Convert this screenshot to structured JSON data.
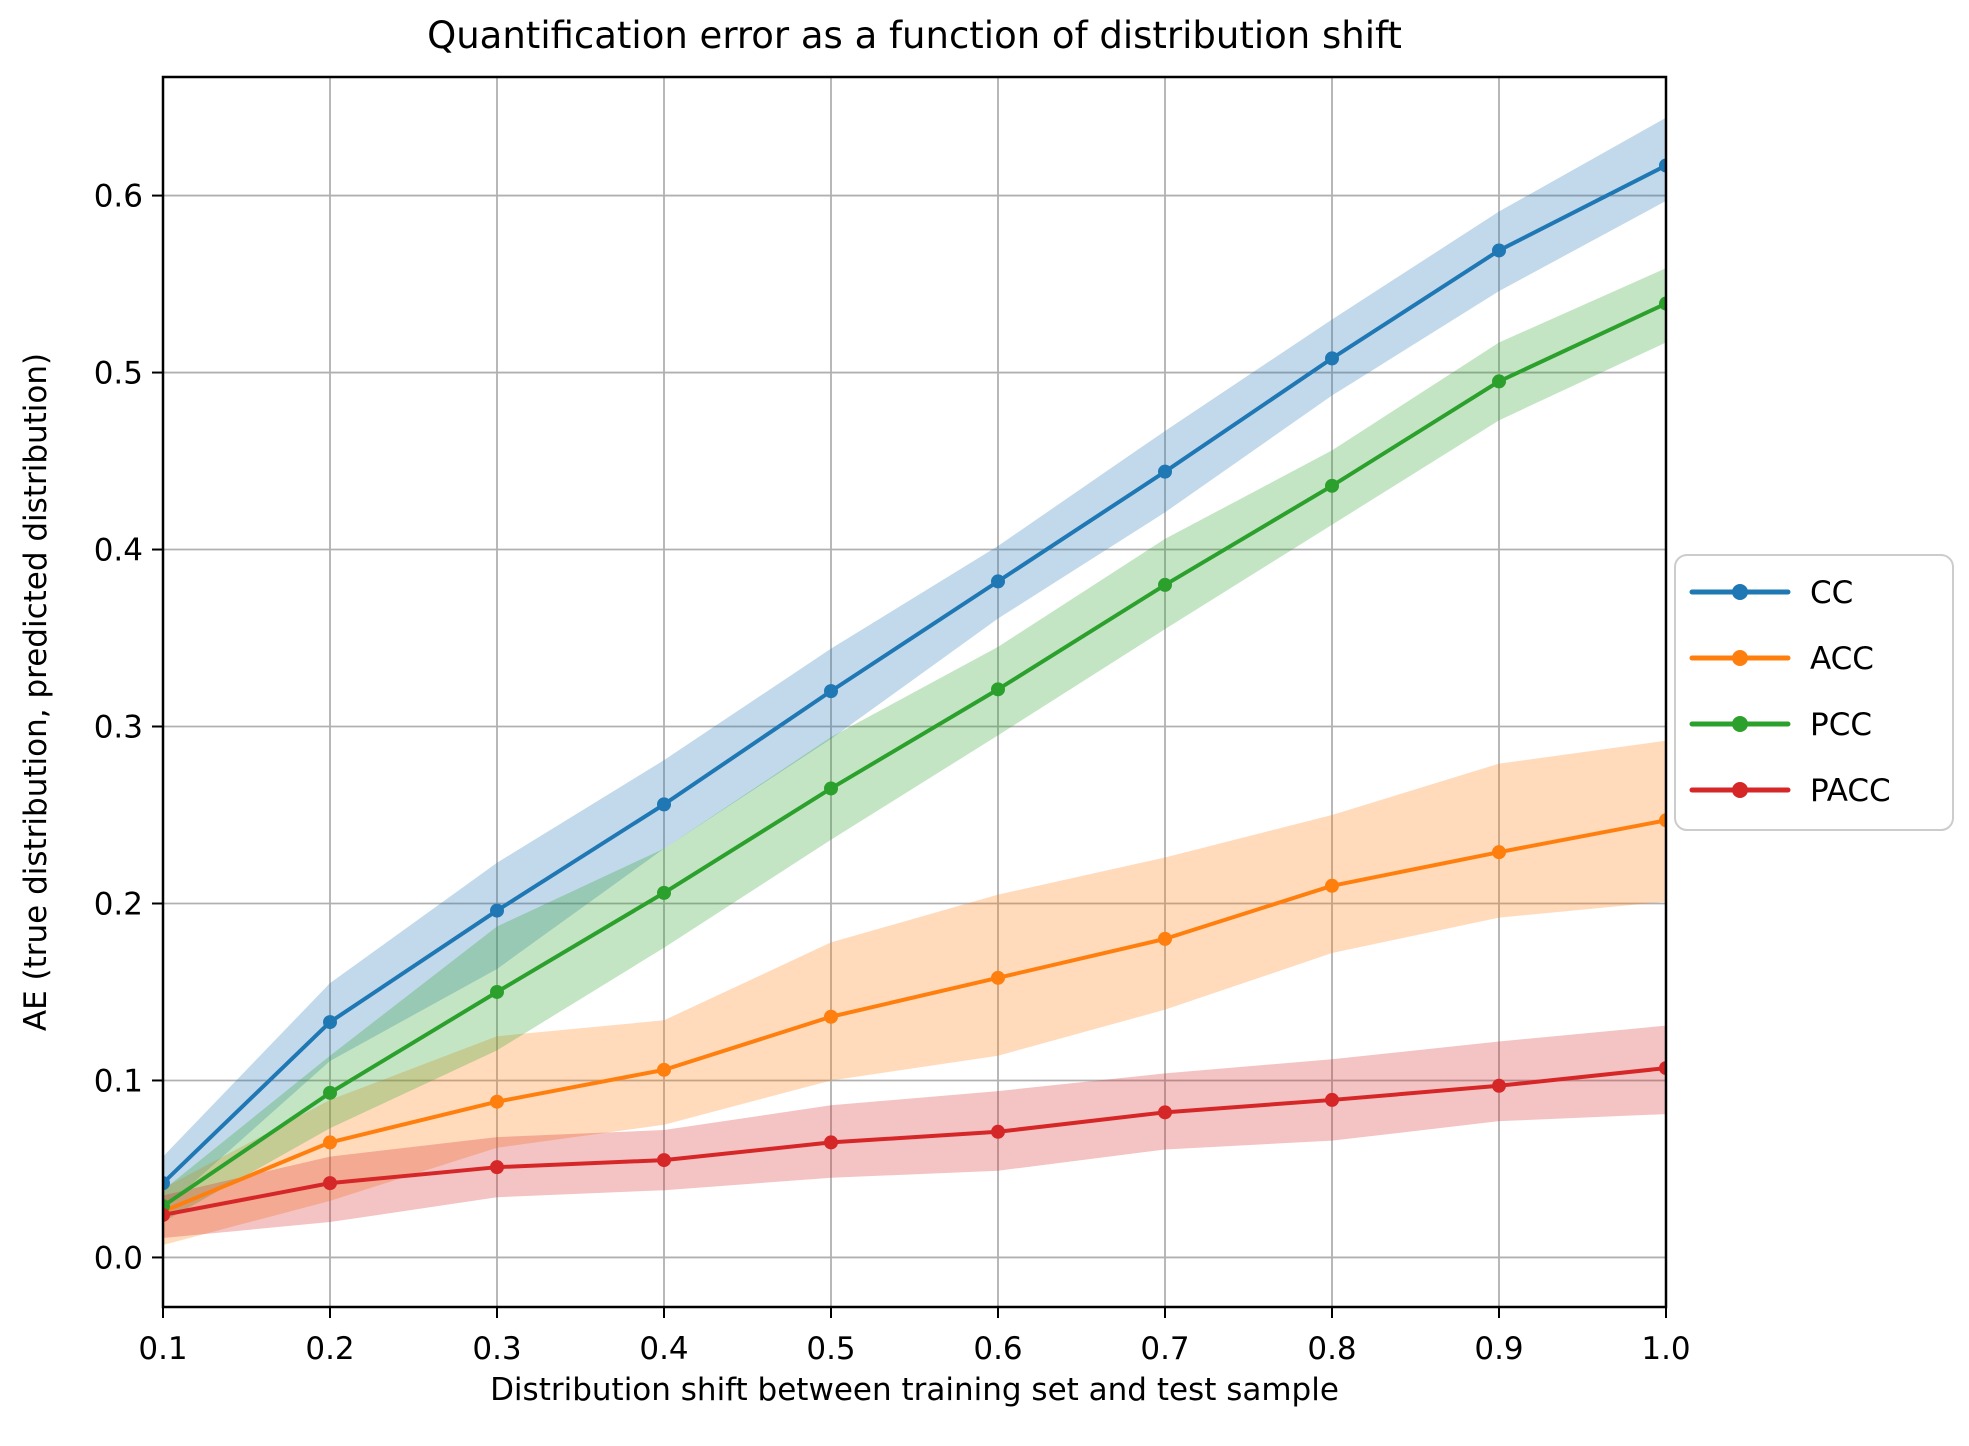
{
  "chart_data": {
    "type": "line",
    "title": "Quantification error as a function of distribution shift",
    "xlabel": "Distribution shift between training set and test sample",
    "ylabel": "AE (true distribution, predicted distribution)",
    "x": [
      0.1,
      0.2,
      0.3,
      0.4,
      0.5,
      0.6,
      0.7,
      0.8,
      0.9,
      1.0
    ],
    "xlim": [
      0.1,
      1.0
    ],
    "ylim": [
      -0.028,
      0.667
    ],
    "xtick_labels": [
      "0.1",
      "0.2",
      "0.3",
      "0.4",
      "0.5",
      "0.6",
      "0.7",
      "0.8",
      "0.9",
      "1.0"
    ],
    "ytick_labels": [
      "0.0",
      "0.1",
      "0.2",
      "0.3",
      "0.4",
      "0.5",
      "0.6"
    ],
    "xticks": [
      0.1,
      0.2,
      0.3,
      0.4,
      0.5,
      0.6,
      0.7,
      0.8,
      0.9,
      1.0
    ],
    "yticks": [
      0.0,
      0.1,
      0.2,
      0.3,
      0.4,
      0.5,
      0.6
    ],
    "grid": true,
    "grid_color": "#b0b0b0",
    "band_alpha": 0.28,
    "legend_position": "right-outside",
    "series": [
      {
        "name": "CC",
        "color": "#1f77b4",
        "values": [
          0.042,
          0.133,
          0.196,
          0.256,
          0.32,
          0.382,
          0.444,
          0.508,
          0.569,
          0.617
        ],
        "lower": [
          0.027,
          0.111,
          0.163,
          0.231,
          0.293,
          0.361,
          0.421,
          0.487,
          0.546,
          0.597
        ],
        "upper": [
          0.057,
          0.155,
          0.223,
          0.281,
          0.344,
          0.402,
          0.467,
          0.53,
          0.591,
          0.644
        ]
      },
      {
        "name": "ACC",
        "color": "#ff7f0e",
        "values": [
          0.026,
          0.065,
          0.088,
          0.106,
          0.136,
          0.158,
          0.18,
          0.21,
          0.229,
          0.247
        ],
        "lower": [
          0.007,
          0.032,
          0.062,
          0.075,
          0.1,
          0.114,
          0.14,
          0.172,
          0.192,
          0.201
        ],
        "upper": [
          0.039,
          0.089,
          0.125,
          0.134,
          0.178,
          0.205,
          0.226,
          0.25,
          0.279,
          0.292
        ]
      },
      {
        "name": "PCC",
        "color": "#2ca02c",
        "values": [
          0.029,
          0.093,
          0.15,
          0.206,
          0.265,
          0.321,
          0.38,
          0.436,
          0.495,
          0.539
        ],
        "lower": [
          0.02,
          0.073,
          0.117,
          0.175,
          0.236,
          0.295,
          0.355,
          0.414,
          0.473,
          0.517
        ],
        "upper": [
          0.038,
          0.114,
          0.187,
          0.231,
          0.294,
          0.345,
          0.406,
          0.456,
          0.517,
          0.559
        ]
      },
      {
        "name": "PACC",
        "color": "#d62728",
        "values": [
          0.024,
          0.042,
          0.051,
          0.055,
          0.065,
          0.071,
          0.082,
          0.089,
          0.097,
          0.107
        ],
        "lower": [
          0.011,
          0.02,
          0.034,
          0.038,
          0.045,
          0.049,
          0.061,
          0.066,
          0.077,
          0.081
        ],
        "upper": [
          0.035,
          0.057,
          0.068,
          0.072,
          0.086,
          0.094,
          0.104,
          0.112,
          0.122,
          0.131
        ]
      }
    ]
  }
}
